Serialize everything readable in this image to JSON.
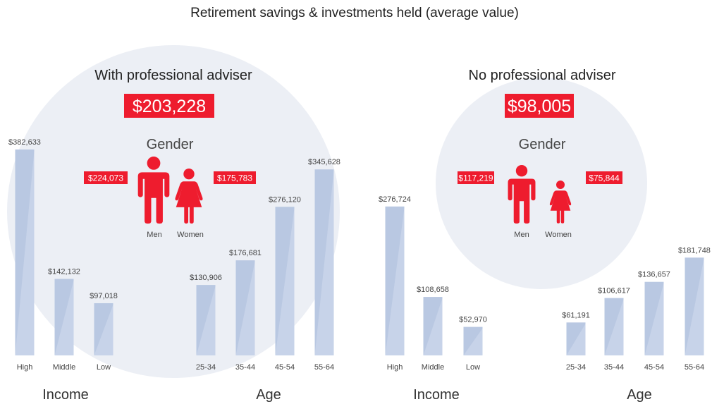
{
  "title": "Retirement savings & investments held (average value)",
  "colors": {
    "bar": "#b9c8e2",
    "bar_highlight": "#d3ddee",
    "circle": "#eceff5",
    "accent": "#ee1c2e",
    "text": "#222222",
    "value_text": "#444444"
  },
  "chart_data": [
    {
      "type": "bar",
      "heading": "With professional adviser",
      "overall": "$203,228",
      "gender": {
        "label": "Gender",
        "men_label": "Men",
        "women_label": "Women",
        "men_value": "$224,073",
        "women_value": "$175,783",
        "icons": [
          "man-icon",
          "woman-icon"
        ]
      },
      "groups": [
        {
          "label": "Income",
          "categories": [
            "High",
            "Middle",
            "Low"
          ],
          "values": [
            382633,
            142132,
            97018
          ],
          "value_labels": [
            "$382,633",
            "$142,132",
            "$97,018"
          ]
        },
        {
          "label": "Age",
          "categories": [
            "25-34",
            "35-44",
            "45-54",
            "55-64"
          ],
          "values": [
            130906,
            176681,
            276120,
            345628
          ],
          "value_labels": [
            "$130,906",
            "$176,681",
            "$276,120",
            "$345,628"
          ]
        }
      ]
    },
    {
      "type": "bar",
      "heading": "No professional adviser",
      "overall": "$98,005",
      "gender": {
        "label": "Gender",
        "men_label": "Men",
        "women_label": "Women",
        "men_value": "$117,219",
        "women_value": "$75,844",
        "icons": [
          "man-icon",
          "woman-icon"
        ]
      },
      "groups": [
        {
          "label": "Income",
          "categories": [
            "High",
            "Middle",
            "Low"
          ],
          "values": [
            276724,
            108658,
            52970
          ],
          "value_labels": [
            "$276,724",
            "$108,658",
            "$52,970"
          ]
        },
        {
          "label": "Age",
          "categories": [
            "25-34",
            "35-44",
            "45-54",
            "55-64"
          ],
          "values": [
            61191,
            106617,
            136657,
            181748
          ],
          "value_labels": [
            "$61,191",
            "$106,617",
            "$136,657",
            "$181,748"
          ]
        }
      ]
    }
  ]
}
